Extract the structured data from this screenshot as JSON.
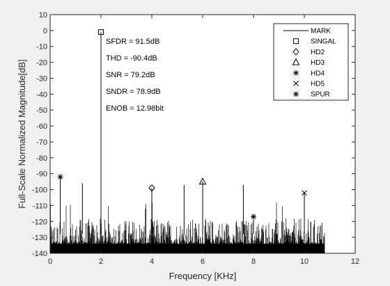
{
  "chart_data": {
    "type": "line",
    "xlabel": "Frequency [KHz]",
    "ylabel": "Full-Scale Normalized Magnitude[dB]",
    "xlim": [
      0,
      12
    ],
    "ylim": [
      -140,
      10
    ],
    "xticks": [
      0,
      2,
      4,
      6,
      8,
      10,
      12
    ],
    "yticks": [
      10,
      0,
      -10,
      -20,
      -30,
      -40,
      -50,
      -60,
      -70,
      -80,
      -90,
      -100,
      -110,
      -120,
      -130,
      -140
    ],
    "grid": false,
    "legend_position": "top-right",
    "noise_floor": {
      "x_range": [
        0,
        10.8
      ],
      "level_range": [
        -140,
        -118
      ]
    },
    "spikes": [
      {
        "x": 0.4,
        "y": -92
      },
      {
        "x": 1.27,
        "y": -96
      },
      {
        "x": 2.0,
        "y": -1
      },
      {
        "x": 3.75,
        "y": -112
      },
      {
        "x": 4.0,
        "y": -99
      },
      {
        "x": 5.27,
        "y": -97
      },
      {
        "x": 6.0,
        "y": -95
      },
      {
        "x": 7.6,
        "y": -97
      },
      {
        "x": 8.0,
        "y": -117
      },
      {
        "x": 10.0,
        "y": -102
      }
    ],
    "series": [
      {
        "name": "MARK",
        "marker": "line",
        "points": []
      },
      {
        "name": "SINGAL",
        "marker": "square",
        "points": [
          [
            2.0,
            -1
          ]
        ]
      },
      {
        "name": "HD2",
        "marker": "diamond",
        "points": [
          [
            4.0,
            -99
          ]
        ]
      },
      {
        "name": "HD3",
        "marker": "triangle",
        "points": [
          [
            6.0,
            -95
          ]
        ]
      },
      {
        "name": "HD4",
        "marker": "asterisk",
        "points": [
          [
            8.0,
            -117
          ]
        ]
      },
      {
        "name": "HD5",
        "marker": "x",
        "points": [
          [
            10.0,
            -102
          ]
        ]
      },
      {
        "name": "SPUR",
        "marker": "asterisk",
        "points": [
          [
            0.4,
            -92
          ]
        ]
      }
    ],
    "annotations": [
      "SFDR = 91.5dB",
      "THD = -90.4dB",
      "SNR = 79.2dB",
      "SNDR = 78.9dB",
      "ENOB = 12.98bit"
    ]
  }
}
